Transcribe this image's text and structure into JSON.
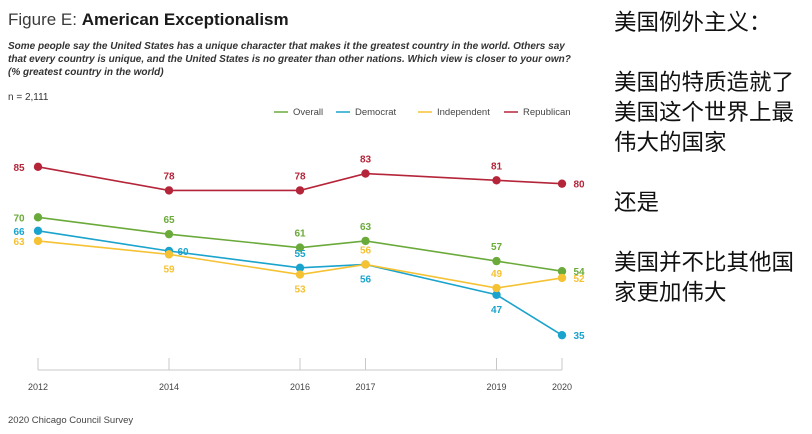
{
  "figure": {
    "title_prefix": "Figure E: ",
    "title_main": "American Exceptionalism",
    "question": "Some people say the United States has a unique character that makes it the greatest country in the world. Others say that every country is unique, and the United States is no greater than other nations. Which view is closer to your own? (% greatest country in the world)",
    "sample": "n = 2,111",
    "source": "2020 Chicago Council Survey"
  },
  "side_text": {
    "line1": "美国例外主义：",
    "line2": "美国的特质造就了美国这个世界上最伟大的国家",
    "line3": "还是",
    "line4": "美国并不比其他国家更加伟大"
  },
  "chart_data": {
    "type": "line",
    "x": [
      2012,
      2014,
      2016,
      2017,
      2019,
      2020
    ],
    "ylim": [
      30,
      90
    ],
    "title": "American Exceptionalism",
    "legend_position": "top-right",
    "series": [
      {
        "name": "Overall",
        "color": "#6aaa3a",
        "values": [
          70,
          65,
          61,
          63,
          57,
          54
        ]
      },
      {
        "name": "Democrat",
        "color": "#1aa3cc",
        "values": [
          66,
          60,
          55,
          56,
          47,
          35
        ]
      },
      {
        "name": "Independent",
        "color": "#f5c233",
        "values": [
          63,
          59,
          53,
          56,
          49,
          52
        ]
      },
      {
        "name": "Republican",
        "color": "#b5253a",
        "values": [
          85,
          78,
          78,
          83,
          81,
          80
        ]
      }
    ]
  }
}
